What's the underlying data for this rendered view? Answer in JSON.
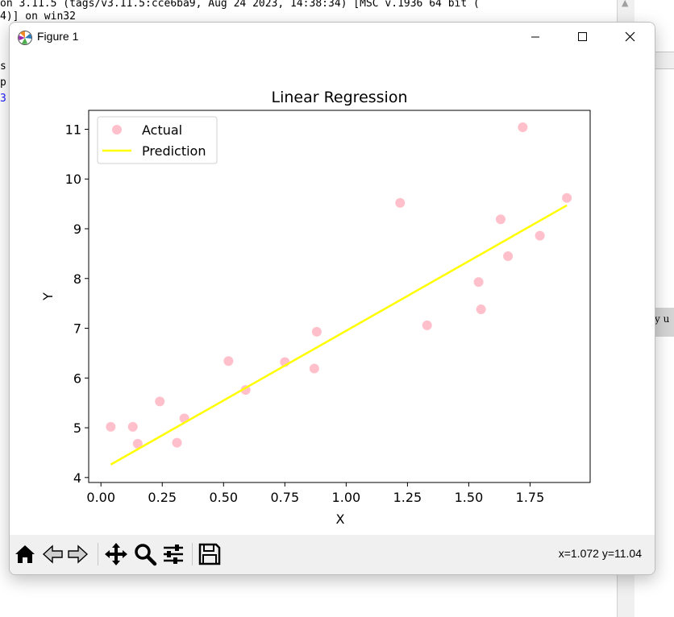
{
  "background": {
    "shell_line1": "on 3.11.5 (tags/v3.11.5:cce6ba9, Aug 24 2023, 14:38:34) [MSC v.1936 64 bit (",
    "shell_line2": "4)] on win32",
    "frag1": "s",
    "frag2": "p",
    "frag3": "3",
    "right_panel_text": "y u"
  },
  "window": {
    "title": "Figure 1",
    "icon": "matplotlib-icon"
  },
  "chart_data": {
    "type": "scatter",
    "title": "Linear Regression",
    "xlabel": "X",
    "ylabel": "Y",
    "xlim": [
      -0.05,
      1.995
    ],
    "ylim": [
      3.9,
      11.38
    ],
    "xticks": [
      0.0,
      0.25,
      0.5,
      0.75,
      1.0,
      1.25,
      1.5,
      1.75
    ],
    "xtick_labels": [
      "0.00",
      "0.25",
      "0.50",
      "0.75",
      "1.00",
      "1.25",
      "1.50",
      "1.75"
    ],
    "yticks": [
      4,
      5,
      6,
      7,
      8,
      9,
      10,
      11
    ],
    "ytick_labels": [
      "4",
      "5",
      "6",
      "7",
      "8",
      "9",
      "10",
      "11"
    ],
    "legend_position": "upper-left",
    "grid": false,
    "series": [
      {
        "name": "Actual",
        "kind": "scatter",
        "color": "#ffc0cb",
        "points": [
          {
            "x": 0.04,
            "y": 5.02
          },
          {
            "x": 0.13,
            "y": 5.02
          },
          {
            "x": 0.15,
            "y": 4.68
          },
          {
            "x": 0.24,
            "y": 5.53
          },
          {
            "x": 0.31,
            "y": 4.7
          },
          {
            "x": 0.34,
            "y": 5.19
          },
          {
            "x": 0.52,
            "y": 6.34
          },
          {
            "x": 0.59,
            "y": 5.76
          },
          {
            "x": 0.75,
            "y": 6.32
          },
          {
            "x": 0.87,
            "y": 6.19
          },
          {
            "x": 0.88,
            "y": 6.93
          },
          {
            "x": 1.22,
            "y": 9.52
          },
          {
            "x": 1.33,
            "y": 7.06
          },
          {
            "x": 1.54,
            "y": 7.93
          },
          {
            "x": 1.55,
            "y": 7.38
          },
          {
            "x": 1.63,
            "y": 9.19
          },
          {
            "x": 1.66,
            "y": 8.45
          },
          {
            "x": 1.72,
            "y": 11.04
          },
          {
            "x": 1.79,
            "y": 8.86
          },
          {
            "x": 1.9,
            "y": 9.62
          }
        ]
      },
      {
        "name": "Prediction",
        "kind": "line",
        "color": "#ffff00",
        "points": [
          {
            "x": 0.04,
            "y": 4.26
          },
          {
            "x": 1.9,
            "y": 9.47
          }
        ]
      }
    ]
  },
  "toolbar": {
    "buttons": [
      {
        "name": "home-icon"
      },
      {
        "name": "back-icon"
      },
      {
        "name": "forward-icon"
      },
      {
        "name": "pan-icon"
      },
      {
        "name": "zoom-icon"
      },
      {
        "name": "configure-subplots-icon"
      },
      {
        "name": "save-icon"
      }
    ],
    "coord_readout": "x=1.072 y=11.04"
  }
}
